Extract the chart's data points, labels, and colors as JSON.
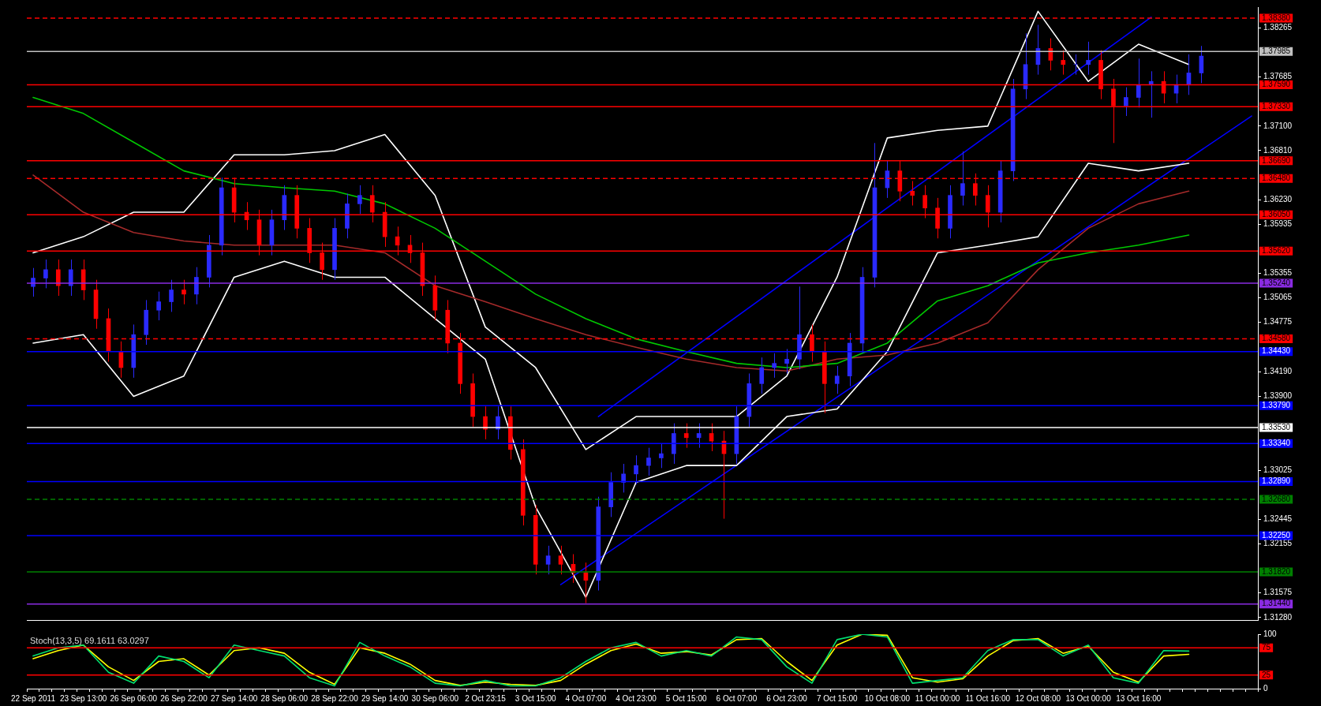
{
  "chart_data": [
    {
      "type": "candlestick",
      "categories": [
        "22 Sep 2011",
        null,
        null,
        null,
        "23 Sep 13:00",
        null,
        null,
        null,
        "26 Sep 06:00",
        null,
        null,
        null,
        "26 Sep 22:00",
        null,
        null,
        null,
        "27 Sep 14:00",
        null,
        null,
        null,
        "28 Sep 06:00",
        null,
        null,
        null,
        "28 Sep 22:00",
        null,
        null,
        null,
        "29 Sep 14:00",
        null,
        null,
        null,
        "30 Sep 06:00",
        null,
        null,
        null,
        "2 Oct 23:15",
        null,
        null,
        null,
        "3 Oct 15:00",
        null,
        null,
        null,
        "4 Oct 07:00",
        null,
        null,
        null,
        "4 Oct 23:00",
        null,
        null,
        null,
        "5 Oct 15:00",
        null,
        null,
        null,
        "6 Oct 07:00",
        null,
        null,
        null,
        "6 Oct 23:00",
        null,
        null,
        null,
        "7 Oct 15:00",
        null,
        null,
        null,
        "10 Oct 08:00",
        null,
        null,
        null,
        "11 Oct 00:00",
        null,
        null,
        null,
        "11 Oct 16:00",
        null,
        null,
        null,
        "12 Oct 08:00",
        null,
        null,
        null,
        "13 Oct 00:00",
        null,
        null,
        null,
        "13 Oct 16:00",
        null,
        null,
        null,
        null,
        null,
        null,
        null,
        null,
        null
      ],
      "ohlc": [
        [
          1.352,
          1.3542,
          1.3508,
          1.353
        ],
        [
          1.353,
          1.3552,
          1.3518,
          1.354
        ],
        [
          1.354,
          1.3552,
          1.3509,
          1.3521
        ],
        [
          1.3521,
          1.3552,
          1.3509,
          1.354
        ],
        [
          1.354,
          1.3552,
          1.3504,
          1.3516
        ],
        [
          1.3516,
          1.3528,
          1.347,
          1.3482
        ],
        [
          1.3482,
          1.3494,
          1.3431,
          1.3443
        ],
        [
          1.3443,
          1.3455,
          1.3412,
          1.3424
        ],
        [
          1.3424,
          1.3475,
          1.3412,
          1.3463
        ],
        [
          1.3463,
          1.3504,
          1.3451,
          1.3492
        ],
        [
          1.3492,
          1.3514,
          1.348,
          1.3502
        ],
        [
          1.3502,
          1.3528,
          1.349,
          1.3516
        ],
        [
          1.3516,
          1.3528,
          1.3499,
          1.3511
        ],
        [
          1.3511,
          1.3543,
          1.3499,
          1.3531
        ],
        [
          1.3531,
          1.3581,
          1.3519,
          1.3569
        ],
        [
          1.3569,
          1.3649,
          1.3557,
          1.3637
        ],
        [
          1.3637,
          1.3649,
          1.3596,
          1.3608
        ],
        [
          1.3608,
          1.362,
          1.3587,
          1.3599
        ],
        [
          1.3599,
          1.3611,
          1.3557,
          1.3569
        ],
        [
          1.3569,
          1.3611,
          1.3557,
          1.3599
        ],
        [
          1.3599,
          1.364,
          1.3587,
          1.3628
        ],
        [
          1.3628,
          1.364,
          1.3577,
          1.3589
        ],
        [
          1.3589,
          1.3601,
          1.3548,
          1.356
        ],
        [
          1.356,
          1.3572,
          1.3528,
          1.354
        ],
        [
          1.354,
          1.3601,
          1.3528,
          1.3589
        ],
        [
          1.3589,
          1.363,
          1.3577,
          1.3618
        ],
        [
          1.3618,
          1.364,
          1.3606,
          1.3628
        ],
        [
          1.3628,
          1.364,
          1.3596,
          1.3608
        ],
        [
          1.3608,
          1.362,
          1.3567,
          1.3579
        ],
        [
          1.3579,
          1.3591,
          1.3557,
          1.3569
        ],
        [
          1.3569,
          1.3581,
          1.3548,
          1.356
        ],
        [
          1.356,
          1.3572,
          1.3509,
          1.3521
        ],
        [
          1.3521,
          1.3533,
          1.348,
          1.3492
        ],
        [
          1.3492,
          1.3504,
          1.3441,
          1.3453
        ],
        [
          1.3453,
          1.3465,
          1.3393,
          1.3405
        ],
        [
          1.3405,
          1.3417,
          1.3354,
          1.3366
        ],
        [
          1.3366,
          1.3378,
          1.3339,
          1.3351
        ],
        [
          1.3351,
          1.3378,
          1.3339,
          1.3366
        ],
        [
          1.3366,
          1.3378,
          1.3315,
          1.3327
        ],
        [
          1.3327,
          1.3339,
          1.3237,
          1.3249
        ],
        [
          1.3249,
          1.3261,
          1.3179,
          1.3191
        ],
        [
          1.3191,
          1.3213,
          1.3179,
          1.3201
        ],
        [
          1.3201,
          1.3213,
          1.3179,
          1.3191
        ],
        [
          1.3191,
          1.3203,
          1.3169,
          1.3181
        ],
        [
          1.3181,
          1.3193,
          1.3145,
          1.3172
        ],
        [
          1.3172,
          1.3271,
          1.316,
          1.3259
        ],
        [
          1.3259,
          1.33,
          1.3247,
          1.3288
        ],
        [
          1.3288,
          1.331,
          1.3276,
          1.3298
        ],
        [
          1.3298,
          1.332,
          1.3286,
          1.3308
        ],
        [
          1.3308,
          1.3329,
          1.3296,
          1.3317
        ],
        [
          1.3317,
          1.3334,
          1.3305,
          1.3322
        ],
        [
          1.3322,
          1.3358,
          1.331,
          1.3346
        ],
        [
          1.3346,
          1.3358,
          1.3329,
          1.3341
        ],
        [
          1.3341,
          1.3358,
          1.3329,
          1.3346
        ],
        [
          1.3346,
          1.3358,
          1.3325,
          1.3337
        ],
        [
          1.3337,
          1.3349,
          1.3245,
          1.3322
        ],
        [
          1.3322,
          1.3378,
          1.331,
          1.3366
        ],
        [
          1.3366,
          1.3417,
          1.3354,
          1.3405
        ],
        [
          1.3405,
          1.3436,
          1.3393,
          1.3424
        ],
        [
          1.3424,
          1.3441,
          1.3412,
          1.3429
        ],
        [
          1.3429,
          1.3446,
          1.3417,
          1.3434
        ],
        [
          1.3434,
          1.352,
          1.3422,
          1.3463
        ],
        [
          1.3463,
          1.3475,
          1.3431,
          1.3443
        ],
        [
          1.3443,
          1.3455,
          1.337,
          1.3405
        ],
        [
          1.3405,
          1.3426,
          1.3393,
          1.3414
        ],
        [
          1.3414,
          1.3465,
          1.3402,
          1.3453
        ],
        [
          1.3453,
          1.3543,
          1.3441,
          1.3531
        ],
        [
          1.3531,
          1.369,
          1.3519,
          1.3637
        ],
        [
          1.3637,
          1.3669,
          1.3625,
          1.3657
        ],
        [
          1.3657,
          1.3669,
          1.3621,
          1.3633
        ],
        [
          1.3633,
          1.3645,
          1.3616,
          1.3628
        ],
        [
          1.3628,
          1.364,
          1.3601,
          1.3613
        ],
        [
          1.3613,
          1.3625,
          1.3577,
          1.3589
        ],
        [
          1.3589,
          1.364,
          1.3577,
          1.3628
        ],
        [
          1.3628,
          1.368,
          1.3616,
          1.3642
        ],
        [
          1.3642,
          1.3654,
          1.3616,
          1.3628
        ],
        [
          1.3628,
          1.364,
          1.359,
          1.3608
        ],
        [
          1.3608,
          1.3669,
          1.3596,
          1.3657
        ],
        [
          1.3657,
          1.3766,
          1.3645,
          1.3754
        ],
        [
          1.3754,
          1.382,
          1.3742,
          1.3783
        ],
        [
          1.3783,
          1.383,
          1.3771,
          1.3802
        ],
        [
          1.3802,
          1.3814,
          1.3776,
          1.3788
        ],
        [
          1.3788,
          1.38,
          1.3771,
          1.3783
        ],
        [
          1.3783,
          1.3795,
          1.3771,
          1.3783
        ],
        [
          1.3783,
          1.381,
          1.3771,
          1.3788
        ],
        [
          1.3788,
          1.38,
          1.3742,
          1.3754
        ],
        [
          1.3754,
          1.3766,
          1.369,
          1.3734
        ],
        [
          1.3734,
          1.3756,
          1.3722,
          1.3744
        ],
        [
          1.3744,
          1.379,
          1.3732,
          1.3759
        ],
        [
          1.3759,
          1.3775,
          1.372,
          1.3763
        ],
        [
          1.3763,
          1.3775,
          1.3737,
          1.3749
        ],
        [
          1.3749,
          1.3771,
          1.3737,
          1.3759
        ],
        [
          1.3759,
          1.3795,
          1.3747,
          1.3773
        ],
        [
          1.3773,
          1.3805,
          1.3761,
          1.3793
        ],
        null,
        null,
        null,
        null
      ],
      "colors": [
        "#2a2aff",
        "#2a2aff",
        "#ff0000",
        "#2a2aff",
        "#ff0000",
        "#ff0000",
        "#ff0000",
        "#ff0000",
        "#2a2aff",
        "#2a2aff",
        "#2a2aff",
        "#2a2aff",
        "#ff0000",
        "#2a2aff",
        "#2a2aff",
        "#2a2aff",
        "#ff0000",
        "#ff0000",
        "#ff0000",
        "#2a2aff",
        "#2a2aff",
        "#ff0000",
        "#ff0000",
        "#ff0000",
        "#2a2aff",
        "#2a2aff",
        "#2a2aff",
        "#ff0000",
        "#ff0000",
        "#ff0000",
        "#ff0000",
        "#ff0000",
        "#ff0000",
        "#ff0000",
        "#ff0000",
        "#ff0000",
        "#ff0000",
        "#2a2aff",
        "#ff0000",
        "#ff0000",
        "#ff0000",
        "#2a2aff",
        "#ff0000",
        "#ff0000",
        "#ff0000",
        "#2a2aff",
        "#2a2aff",
        "#2a2aff",
        "#2a2aff",
        "#2a2aff",
        "#2a2aff",
        "#2a2aff",
        "#ff0000",
        "#2a2aff",
        "#ff0000",
        "#ff0000",
        "#2a2aff",
        "#2a2aff",
        "#2a2aff",
        "#2a2aff",
        "#2a2aff",
        "#2a2aff",
        "#ff0000",
        "#ff0000",
        "#2a2aff",
        "#2a2aff",
        "#2a2aff",
        "#2a2aff",
        "#2a2aff",
        "#ff0000",
        "#ff0000",
        "#ff0000",
        "#ff0000",
        "#2a2aff",
        "#2a2aff",
        "#ff0000",
        "#ff0000",
        "#2a2aff",
        "#2a2aff",
        "#2a2aff",
        "#2a2aff",
        "#ff0000",
        "#ff0000",
        "#2a2aff",
        "#2a2aff",
        "#ff0000",
        "#ff0000",
        "#2a2aff",
        "#2a2aff",
        "#2a2aff",
        "#ff0000",
        "#2a2aff",
        "#2a2aff",
        "#2a2aff",
        null,
        null,
        null,
        null
      ],
      "series": [
        {
          "type": "line",
          "color": "#00c800",
          "values": [
            1.3744,
            null,
            null,
            null,
            1.3725,
            null,
            null,
            null,
            1.3691,
            null,
            null,
            null,
            1.3657,
            null,
            null,
            null,
            1.3642,
            null,
            null,
            null,
            1.3637,
            null,
            null,
            null,
            1.3633,
            null,
            null,
            null,
            1.3618,
            null,
            null,
            null,
            1.3589,
            null,
            null,
            null,
            1.355,
            null,
            null,
            null,
            1.3511,
            null,
            null,
            null,
            1.3482,
            null,
            null,
            null,
            1.3458,
            null,
            null,
            null,
            1.3443,
            null,
            null,
            null,
            1.3429,
            null,
            null,
            null,
            1.3424,
            null,
            null,
            null,
            1.3429,
            null,
            null,
            null,
            1.3453,
            null,
            null,
            null,
            1.3503,
            null,
            null,
            null,
            1.3521,
            null,
            null,
            null,
            1.3548,
            null,
            null,
            null,
            1.356,
            null,
            null,
            null,
            1.3569,
            null,
            null,
            null,
            1.3581,
            null,
            null,
            null,
            null,
            null
          ]
        },
        {
          "type": "line",
          "color": "#a52a2a",
          "values": [
            1.3652,
            null,
            null,
            null,
            1.3608,
            null,
            null,
            null,
            1.3584,
            null,
            null,
            null,
            1.3574,
            null,
            null,
            null,
            1.3569,
            null,
            null,
            null,
            1.3569,
            null,
            null,
            null,
            1.3569,
            null,
            null,
            null,
            1.356,
            null,
            null,
            null,
            1.3521,
            null,
            null,
            null,
            1.3502,
            null,
            null,
            null,
            1.3482,
            null,
            null,
            null,
            1.3463,
            null,
            null,
            null,
            1.3448,
            null,
            null,
            null,
            1.3434,
            null,
            null,
            null,
            1.3424,
            null,
            null,
            null,
            1.342,
            null,
            null,
            null,
            1.3434,
            null,
            null,
            null,
            1.3439,
            null,
            null,
            null,
            1.3453,
            null,
            null,
            null,
            1.3477,
            null,
            null,
            null,
            1.354,
            null,
            null,
            null,
            1.3589,
            null,
            null,
            null,
            1.3618,
            null,
            null,
            null,
            1.3633,
            null,
            null,
            null,
            null,
            null
          ]
        },
        {
          "type": "line",
          "color": "#ffffff",
          "values": [
            1.356,
            null,
            null,
            null,
            1.3579,
            null,
            null,
            null,
            1.3608,
            null,
            null,
            null,
            1.3608,
            null,
            null,
            null,
            1.3676,
            null,
            null,
            null,
            1.3676,
            null,
            null,
            null,
            1.3681,
            null,
            null,
            null,
            1.37,
            null,
            null,
            null,
            1.3628,
            null,
            null,
            null,
            1.3472,
            null,
            null,
            null,
            1.3424,
            null,
            null,
            null,
            1.3327,
            null,
            null,
            null,
            1.3366,
            null,
            null,
            null,
            1.3366,
            null,
            null,
            null,
            1.3366,
            null,
            null,
            null,
            1.3414,
            null,
            null,
            null,
            1.3531,
            null,
            null,
            null,
            1.3696,
            null,
            null,
            null,
            1.3705,
            null,
            null,
            null,
            1.371,
            null,
            null,
            null,
            1.3846,
            null,
            null,
            null,
            1.3763,
            null,
            null,
            null,
            1.3807,
            null,
            null,
            null,
            1.3783,
            null,
            null,
            null,
            null,
            null
          ]
        },
        {
          "type": "line",
          "color": "#ffffff",
          "values": [
            1.3453,
            null,
            null,
            null,
            1.3463,
            null,
            null,
            null,
            1.339,
            null,
            null,
            null,
            1.3414,
            null,
            null,
            null,
            1.3531,
            null,
            null,
            null,
            1.355,
            null,
            null,
            null,
            1.3531,
            null,
            null,
            null,
            1.3531,
            null,
            null,
            null,
            1.3482,
            null,
            null,
            null,
            1.3434,
            null,
            null,
            null,
            1.3259,
            null,
            null,
            null,
            1.3152,
            null,
            null,
            null,
            1.3288,
            null,
            null,
            null,
            1.3308,
            null,
            null,
            null,
            1.3308,
            null,
            null,
            null,
            1.3366,
            null,
            null,
            null,
            1.3375,
            null,
            null,
            null,
            1.3443,
            null,
            null,
            null,
            1.356,
            null,
            null,
            null,
            1.3569,
            null,
            null,
            null,
            1.3579,
            null,
            null,
            null,
            1.3666,
            null,
            null,
            null,
            1.3657,
            null,
            null,
            null,
            1.3666,
            null,
            null,
            null,
            null,
            null
          ]
        },
        {
          "type": "line",
          "color": "#0000ff",
          "values": [
            null,
            null,
            null,
            null,
            null,
            null,
            null,
            null,
            null,
            null,
            null,
            null,
            null,
            null,
            null,
            null,
            null,
            null,
            null,
            null,
            null,
            null,
            null,
            null,
            null,
            null,
            null,
            null,
            null,
            null,
            null,
            null,
            null,
            null,
            null,
            null,
            null,
            null,
            null,
            null,
            null,
            null,
            null,
            null,
            null,
            1.3366,
            null,
            null,
            null,
            null,
            null,
            null,
            null,
            null,
            null,
            null,
            null,
            null,
            null,
            null,
            null,
            null,
            null,
            null,
            null,
            null,
            null,
            null,
            null,
            null,
            null,
            null,
            null,
            null,
            null,
            null,
            null,
            null,
            null,
            null,
            null,
            null,
            null,
            null,
            null,
            null,
            null,
            null,
            null,
            1.3839,
            null,
            null,
            null,
            null,
            null,
            null,
            null,
            null
          ]
        },
        {
          "type": "line",
          "color": "#0000ff",
          "values": [
            null,
            null,
            null,
            null,
            null,
            null,
            null,
            null,
            null,
            null,
            null,
            null,
            null,
            null,
            null,
            null,
            null,
            null,
            null,
            null,
            null,
            null,
            null,
            null,
            null,
            null,
            null,
            null,
            null,
            null,
            null,
            null,
            null,
            null,
            null,
            null,
            null,
            null,
            null,
            null,
            null,
            null,
            1.3167,
            null,
            null,
            null,
            null,
            null,
            null,
            null,
            null,
            null,
            null,
            null,
            null,
            null,
            null,
            null,
            null,
            null,
            null,
            null,
            null,
            null,
            null,
            null,
            null,
            null,
            null,
            null,
            null,
            null,
            null,
            null,
            null,
            null,
            null,
            null,
            null,
            null,
            null,
            null,
            null,
            null,
            null,
            null,
            null,
            null,
            null,
            null,
            null,
            null,
            null,
            null,
            null,
            null,
            null,
            1.3722
          ]
        }
      ],
      "ylim": [
        1.3125,
        1.3851
      ],
      "yticks": [
        {
          "value": 1.38265,
          "label": "1.38265"
        },
        {
          "value": 1.37685,
          "label": "1.37685"
        },
        {
          "value": 1.371,
          "label": "1.37100"
        },
        {
          "value": 1.3681,
          "label": "1.36810"
        },
        {
          "value": 1.3623,
          "label": "1.36230"
        },
        {
          "value": 1.35935,
          "label": "1.35935"
        },
        {
          "value": 1.35355,
          "label": "1.35355"
        },
        {
          "value": 1.35065,
          "label": "1.35065"
        },
        {
          "value": 1.34775,
          "label": "1.34775"
        },
        {
          "value": 1.3419,
          "label": "1.34190"
        },
        {
          "value": 1.339,
          "label": "1.33900"
        },
        {
          "value": 1.33025,
          "label": "1.33025"
        },
        {
          "value": 1.32445,
          "label": "1.32445"
        },
        {
          "value": 1.32155,
          "label": "1.32155"
        },
        {
          "value": 1.31575,
          "label": "1.31575"
        },
        {
          "value": 1.3128,
          "label": "1.31280"
        }
      ],
      "ref_lines": [
        {
          "axis": "y",
          "value": 1.3838,
          "label": "1.38380",
          "color": "#ff0000",
          "line_style": "dashed"
        },
        {
          "axis": "y",
          "value": 1.37985,
          "label": "1.37985",
          "color": "#c0c0c0",
          "line_style": "solid"
        },
        {
          "axis": "y",
          "value": 1.3759,
          "label": "1.37590",
          "color": "#ff0000",
          "line_style": "solid"
        },
        {
          "axis": "y",
          "value": 1.3733,
          "label": "1.37330",
          "color": "#ff0000",
          "line_style": "solid"
        },
        {
          "axis": "y",
          "value": 1.3669,
          "label": "1.36690",
          "color": "#ff0000",
          "line_style": "solid"
        },
        {
          "axis": "y",
          "value": 1.3648,
          "label": "1.36480",
          "color": "#ff0000",
          "line_style": "dashed"
        },
        {
          "axis": "y",
          "value": 1.3605,
          "label": "1.36050",
          "color": "#ff0000",
          "line_style": "solid"
        },
        {
          "axis": "y",
          "value": 1.3562,
          "label": "1.35620",
          "color": "#ff0000",
          "line_style": "solid"
        },
        {
          "axis": "y",
          "value": 1.3524,
          "label": "1.35240",
          "color": "#8a2be2",
          "line_style": "solid"
        },
        {
          "axis": "y",
          "value": 1.3458,
          "label": "1.34580",
          "color": "#ff0000",
          "line_style": "dashed"
        },
        {
          "axis": "y",
          "value": 1.3443,
          "label": "1.34430",
          "color": "#0000ff",
          "line_style": "solid"
        },
        {
          "axis": "y",
          "value": 1.3379,
          "label": "1.33790",
          "color": "#0000ff",
          "line_style": "solid"
        },
        {
          "axis": "y",
          "value": 1.3353,
          "label": "1.33530",
          "color": "#ffffff",
          "line_style": "solid"
        },
        {
          "axis": "y",
          "value": 1.3334,
          "label": "1.33340",
          "color": "#0000ff",
          "line_style": "solid"
        },
        {
          "axis": "y",
          "value": 1.3289,
          "label": "1.32890",
          "color": "#0000ff",
          "line_style": "solid"
        },
        {
          "axis": "y",
          "value": 1.3268,
          "label": "1.32680",
          "color": "#008000",
          "line_style": "dashed"
        },
        {
          "axis": "y",
          "value": 1.3225,
          "label": "1.32250",
          "color": "#0000ff",
          "line_style": "solid"
        },
        {
          "axis": "y",
          "value": 1.3182,
          "label": "1.31820",
          "color": "#008000",
          "line_style": "solid"
        },
        {
          "axis": "y",
          "value": 1.3144,
          "label": "1.31440",
          "color": "#8a2be2",
          "line_style": "solid"
        }
      ],
      "tick_labels": "y",
      "grid": false,
      "legend": false,
      "marker": "none"
    },
    {
      "type": "line",
      "title": "Stoch(13,3,5) 69.1611 63.0297",
      "categories": [
        "22 Sep 2011",
        null,
        null,
        null,
        "23 Sep 13:00",
        null,
        null,
        null,
        "26 Sep 06:00",
        null,
        null,
        null,
        "26 Sep 22:00",
        null,
        null,
        null,
        "27 Sep 14:00",
        null,
        null,
        null,
        "28 Sep 06:00",
        null,
        null,
        null,
        "28 Sep 22:00",
        null,
        null,
        null,
        "29 Sep 14:00",
        null,
        null,
        null,
        "30 Sep 06:00",
        null,
        null,
        null,
        "2 Oct 23:15",
        null,
        null,
        null,
        "3 Oct 15:00",
        null,
        null,
        null,
        "4 Oct 07:00",
        null,
        null,
        null,
        "4 Oct 23:00",
        null,
        null,
        null,
        "5 Oct 15:00",
        null,
        null,
        null,
        "6 Oct 07:00",
        null,
        null,
        null,
        "6 Oct 23:00",
        null,
        null,
        null,
        "7 Oct 15:00",
        null,
        null,
        null,
        "10 Oct 08:00",
        null,
        null,
        null,
        "11 Oct 00:00",
        null,
        null,
        null,
        "11 Oct 16:00",
        null,
        null,
        null,
        "12 Oct 08:00",
        null,
        null,
        null,
        "13 Oct 00:00",
        null,
        null,
        null,
        "13 Oct 16:00",
        null,
        null,
        null,
        null,
        null,
        null,
        null,
        null,
        null
      ],
      "series": [
        {
          "color": "#00e070",
          "values": [
            60,
            null,
            75,
            null,
            80,
            null,
            30,
            null,
            10,
            null,
            60,
            null,
            50,
            null,
            20,
            null,
            80,
            null,
            70,
            null,
            60,
            null,
            20,
            null,
            5,
            null,
            85,
            null,
            60,
            null,
            40,
            null,
            10,
            null,
            5,
            null,
            15,
            null,
            5,
            null,
            5,
            null,
            20,
            null,
            50,
            null,
            75,
            null,
            85,
            null,
            60,
            null,
            70,
            null,
            60,
            null,
            95,
            null,
            90,
            null,
            40,
            null,
            10,
            null,
            90,
            null,
            100,
            null,
            95,
            null,
            10,
            null,
            15,
            null,
            20,
            null,
            70,
            null,
            90,
            null,
            90,
            null,
            60,
            null,
            80,
            null,
            20,
            null,
            10,
            null,
            70,
            null,
            69,
            null,
            null,
            null,
            null,
            null
          ]
        },
        {
          "color": "#ffff00",
          "values": [
            55,
            null,
            70,
            null,
            80,
            null,
            40,
            null,
            15,
            null,
            50,
            null,
            55,
            null,
            25,
            null,
            70,
            null,
            75,
            null,
            65,
            null,
            30,
            null,
            8,
            null,
            75,
            null,
            65,
            null,
            45,
            null,
            15,
            null,
            6,
            null,
            12,
            null,
            8,
            null,
            6,
            null,
            15,
            null,
            45,
            null,
            70,
            null,
            82,
            null,
            65,
            null,
            68,
            null,
            62,
            null,
            90,
            null,
            92,
            null,
            50,
            null,
            15,
            null,
            80,
            null,
            100,
            null,
            98,
            null,
            20,
            null,
            12,
            null,
            18,
            null,
            60,
            null,
            88,
            null,
            92,
            null,
            65,
            null,
            78,
            null,
            30,
            null,
            12,
            null,
            60,
            null,
            63,
            null,
            null,
            null,
            null,
            null
          ]
        }
      ],
      "ylim": [
        0,
        100
      ],
      "yticks": [
        0,
        100
      ],
      "ref_lines": [
        {
          "axis": "y",
          "value": 75,
          "label": "75",
          "color": "#ff0000",
          "line_style": "solid"
        },
        {
          "axis": "y",
          "value": 25,
          "label": "25",
          "color": "#ff0000",
          "line_style": "solid"
        }
      ],
      "grid": false,
      "legend": false,
      "marker": "none"
    }
  ]
}
